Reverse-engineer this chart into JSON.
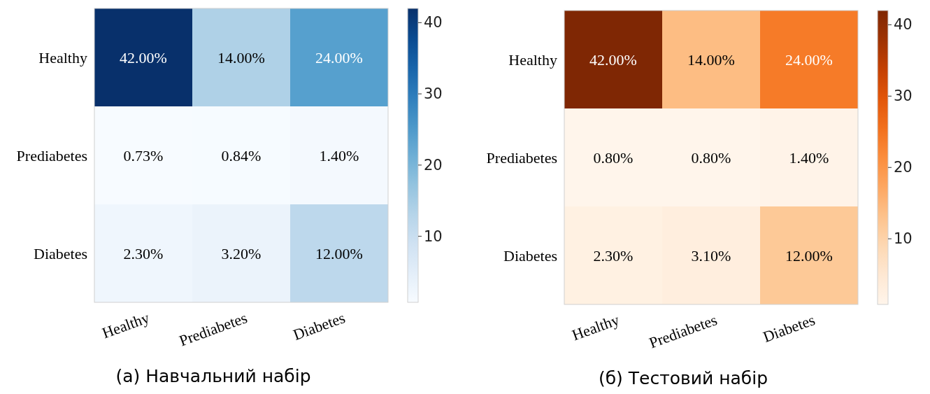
{
  "chart_data": [
    {
      "type": "heatmap",
      "title": "(a) Навчальний набір",
      "categories": [
        "Healthy",
        "Prediabetes",
        "Diabetes"
      ],
      "y_categories": [
        "Healthy",
        "Prediabetes",
        "Diabetes"
      ],
      "cells": [
        [
          42,
          14,
          24
        ],
        [
          0.73,
          0.84,
          1.4
        ],
        [
          2.3,
          3.2,
          12
        ]
      ],
      "cell_labels": [
        [
          "42.00%",
          "14.00%",
          "24.00%"
        ],
        [
          "0.73%",
          "0.84%",
          "1.40%"
        ],
        [
          "2.30%",
          "3.20%",
          "12.00%"
        ]
      ],
      "clim": [
        0.73,
        42
      ],
      "cticks": [
        10,
        20,
        30,
        40
      ]
    },
    {
      "type": "heatmap",
      "title": "(б) Тестовий набір",
      "categories": [
        "Healthy",
        "Prediabetes",
        "Diabetes"
      ],
      "y_categories": [
        "Healthy",
        "Prediabetes",
        "Diabetes"
      ],
      "cells": [
        [
          42,
          14,
          24
        ],
        [
          0.8,
          0.8,
          1.4
        ],
        [
          2.3,
          3.1,
          12
        ]
      ],
      "cell_labels": [
        [
          "42.00%",
          "14.00%",
          "24.00%"
        ],
        [
          "0.80%",
          "0.80%",
          "1.40%"
        ],
        [
          "2.30%",
          "3.10%",
          "12.00%"
        ]
      ],
      "clim": [
        0.8,
        42
      ],
      "cticks": [
        10,
        20,
        30,
        40
      ]
    }
  ]
}
